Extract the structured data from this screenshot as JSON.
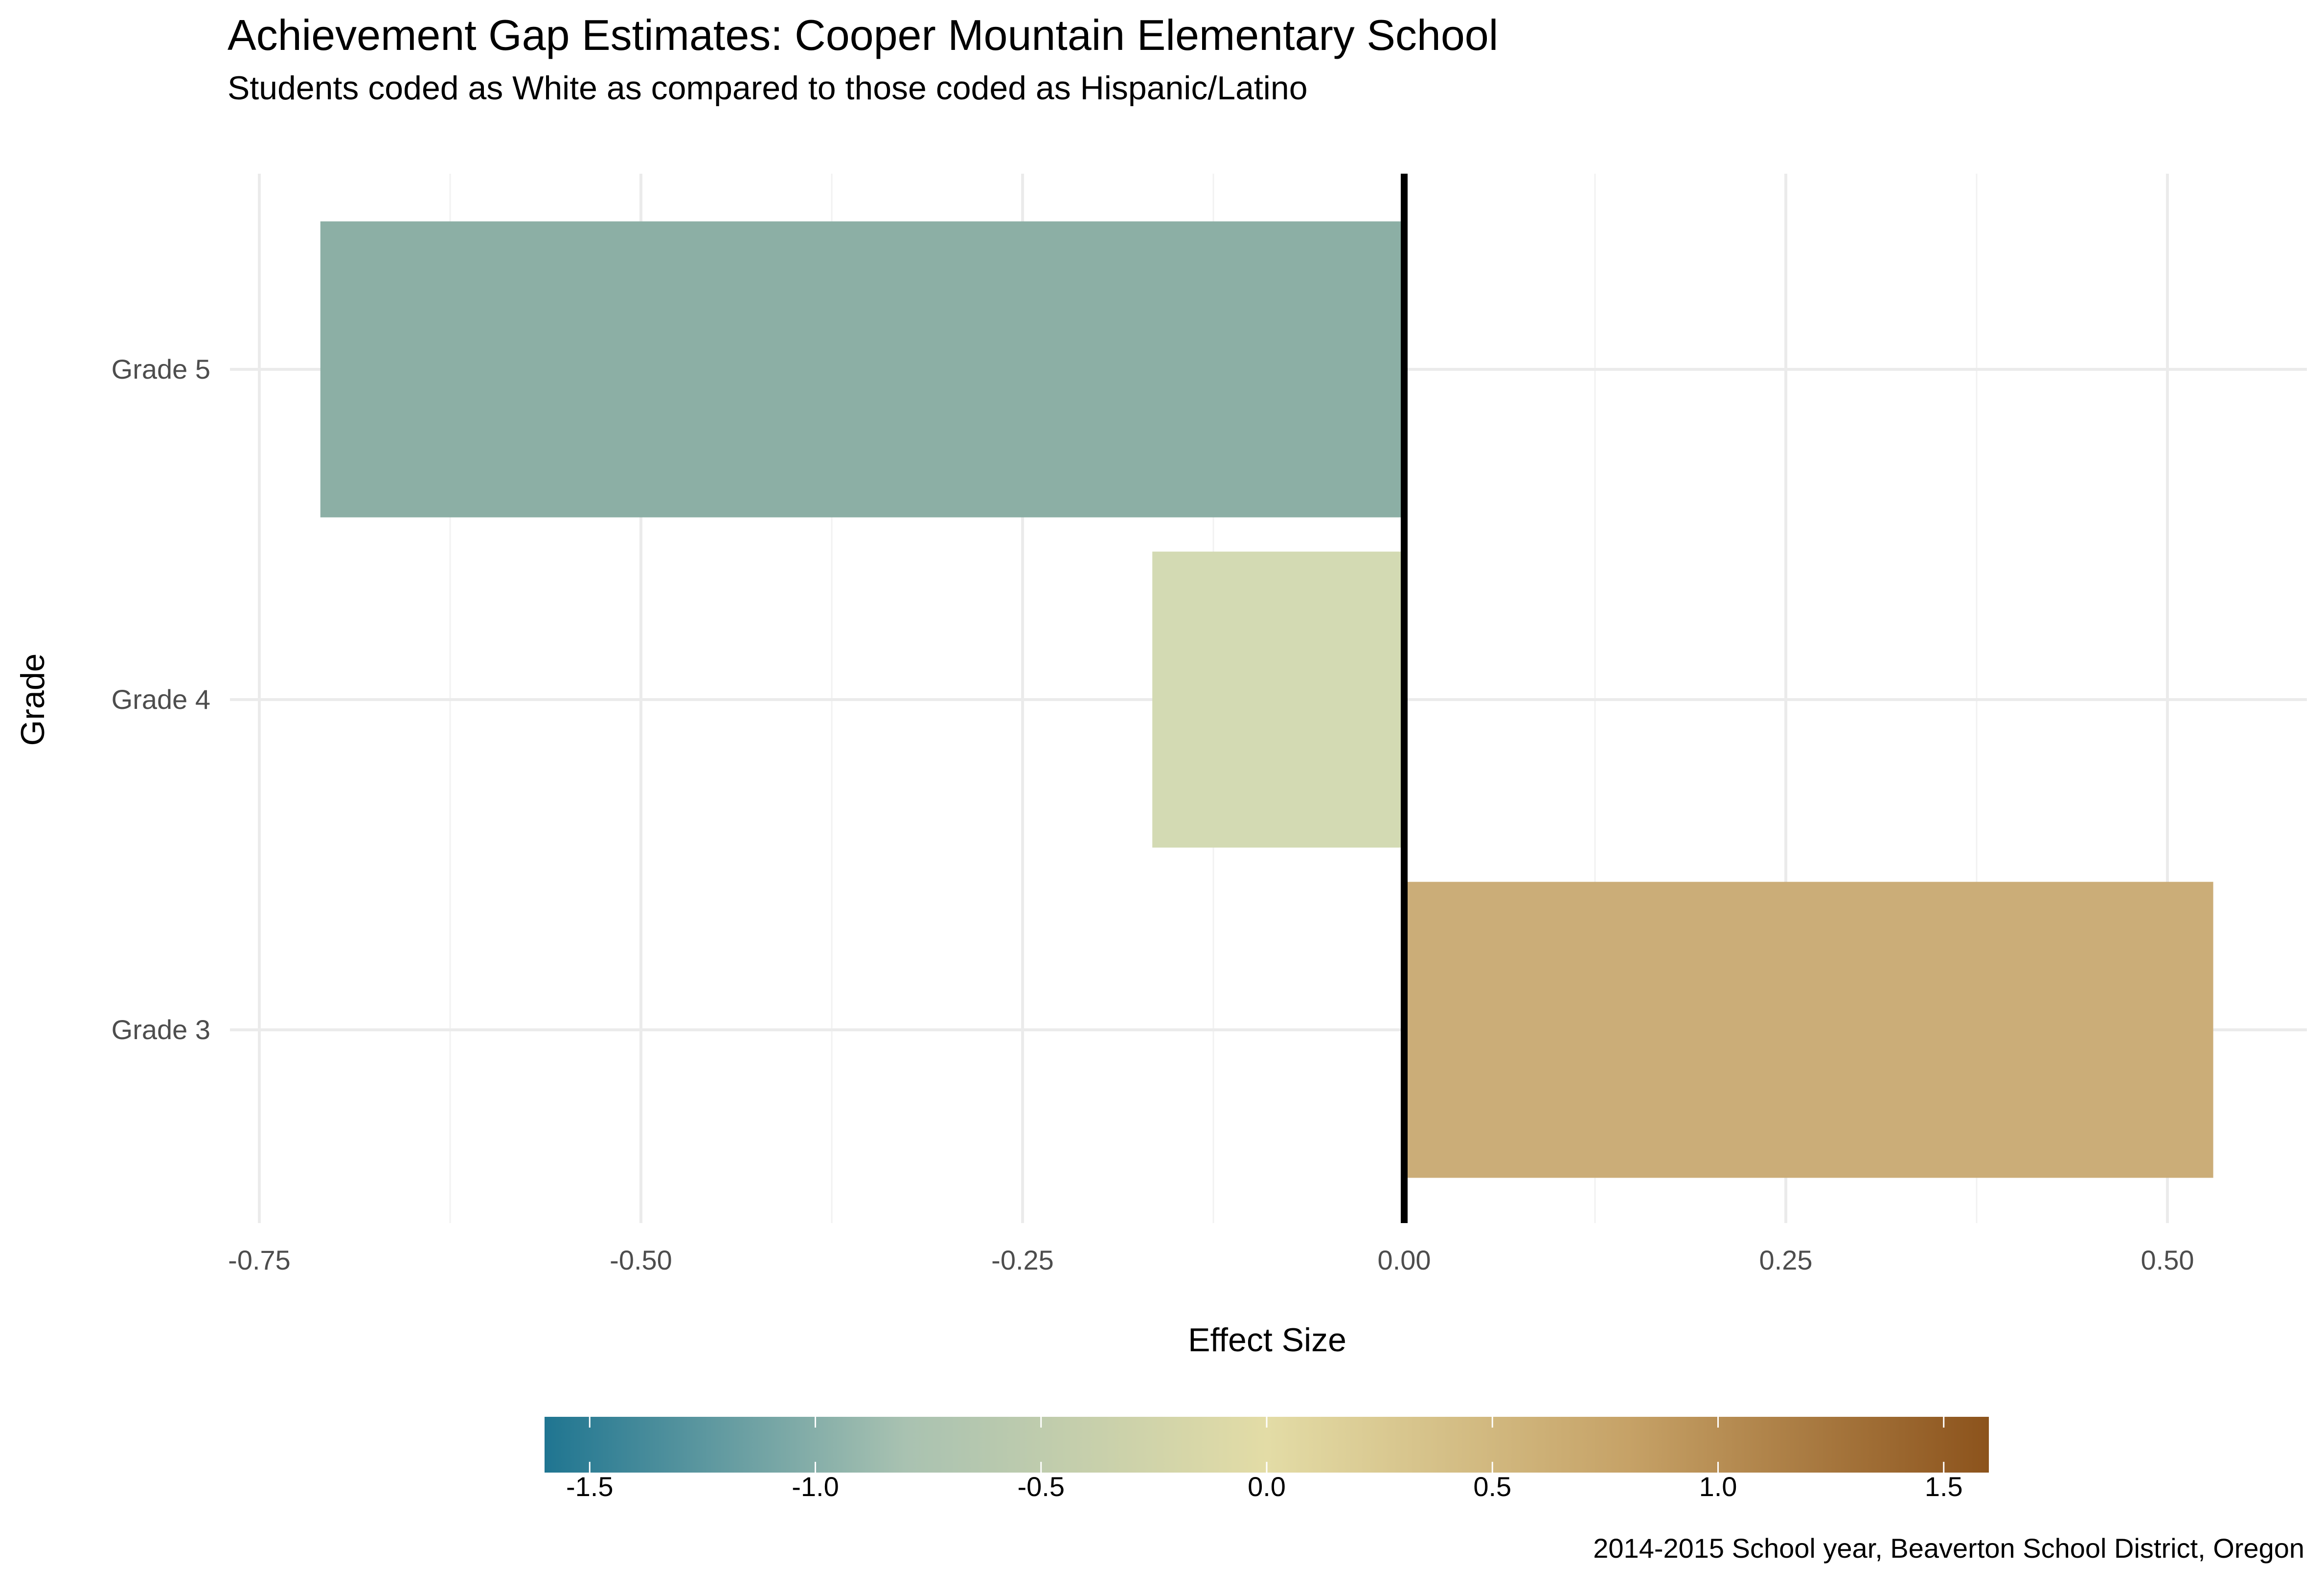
{
  "chart_data": {
    "type": "bar",
    "orientation": "horizontal",
    "title": "Achievement Gap Estimates: Cooper Mountain Elementary School",
    "subtitle": "Students coded as White as compared to those coded as Hispanic/Latino",
    "xlabel": "Effect Size",
    "ylabel": "Grade",
    "caption": "2014-2015 School year, Beaverton School District, Oregon",
    "categories": [
      "Grade 5",
      "Grade 4",
      "Grade 3"
    ],
    "values": [
      -0.71,
      -0.165,
      0.53
    ],
    "bar_colors": [
      "#8cafa5",
      "#d3dab3",
      "#cbad78"
    ],
    "xlim": [
      -0.75,
      0.53
    ],
    "xticks": [
      {
        "value": -0.75,
        "label": "-0.75"
      },
      {
        "value": -0.5,
        "label": "-0.50"
      },
      {
        "value": -0.25,
        "label": "-0.25"
      },
      {
        "value": 0.0,
        "label": "0.00"
      },
      {
        "value": 0.25,
        "label": "0.25"
      },
      {
        "value": 0.5,
        "label": "0.50"
      }
    ],
    "reference_line": 0,
    "grid": true,
    "legend": {
      "type": "colorbar",
      "placement": "bottom",
      "range": [
        -1.6,
        1.6
      ],
      "ticks": [
        {
          "value": -1.5,
          "label": "-1.5"
        },
        {
          "value": -1.0,
          "label": "-1.0"
        },
        {
          "value": -0.5,
          "label": "-0.5"
        },
        {
          "value": 0.0,
          "label": "0.0"
        },
        {
          "value": 0.5,
          "label": "0.5"
        },
        {
          "value": 1.0,
          "label": "1.0"
        },
        {
          "value": 1.5,
          "label": "1.5"
        }
      ],
      "colors": [
        "#1f7591",
        "#a9c2b1",
        "#e3dca6",
        "#c6a267",
        "#8c531c"
      ]
    }
  }
}
